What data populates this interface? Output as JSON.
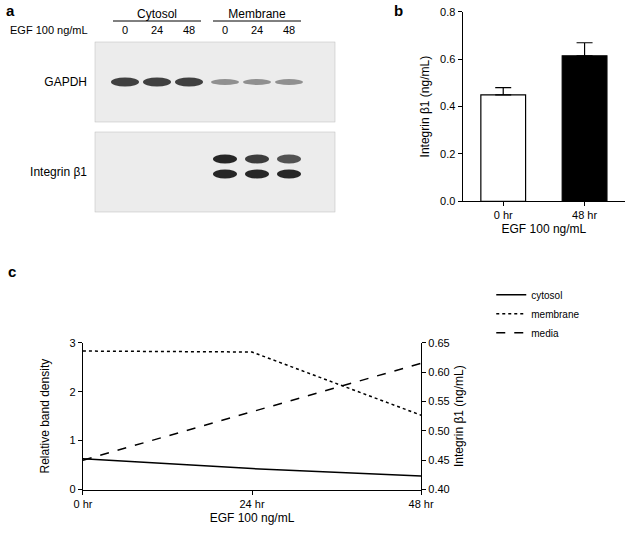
{
  "blot": {
    "panel_label": "a",
    "conditions_label": "EGF 100 ng/mL",
    "fractions": [
      {
        "name": "Cytosol",
        "lanes": [
          "0",
          "24",
          "48"
        ]
      },
      {
        "name": "Membrane",
        "lanes": [
          "0",
          "24",
          "48"
        ]
      }
    ],
    "rows": [
      "GAPDH",
      "Integrin β1"
    ]
  },
  "chart_data": [
    {
      "panel_label": "b",
      "type": "bar",
      "categories": [
        "0 hr",
        "48 hr"
      ],
      "values": [
        0.45,
        0.615
      ],
      "errors": [
        0.03,
        0.055
      ],
      "colors": [
        "#ffffff",
        "#000000"
      ],
      "x_label": "EGF 100 ng/mL",
      "y_label": "Integrin β1 (ng/mL)",
      "ylim": [
        0,
        0.8
      ],
      "yticks": [
        {
          "value": 0,
          "label": "0.0"
        },
        {
          "value": 0.2,
          "label": "0.2"
        },
        {
          "value": 0.4,
          "label": "0.4"
        },
        {
          "value": 0.6,
          "label": "0.6"
        },
        {
          "value": 0.8,
          "label": "0.8"
        }
      ],
      "grid": false
    },
    {
      "panel_label": "c",
      "type": "line",
      "categories": [
        "0 hr",
        "24 hr",
        "48 hr"
      ],
      "x_label": "EGF 100 ng/mL",
      "y_label": "Relative band density",
      "y2_label": "Integrin β1 (ng/mL)",
      "ylim": [
        0,
        3
      ],
      "yticks": [
        0,
        1,
        2,
        3
      ],
      "y2lim": [
        0.4,
        0.65
      ],
      "y2ticks": [
        {
          "value": 0.4,
          "label": "0.40"
        },
        {
          "value": 0.45,
          "label": "0.45"
        },
        {
          "value": 0.5,
          "label": "0.50"
        },
        {
          "value": 0.55,
          "label": "0.55"
        },
        {
          "value": 0.6,
          "label": "0.60"
        },
        {
          "value": 0.65,
          "label": "0.65"
        }
      ],
      "grid": false,
      "legend": "upper right",
      "series": [
        {
          "name": "cytosol",
          "color": "#000000",
          "line_style": "solid",
          "values": [
            0.63,
            0.43,
            0.28
          ]
        },
        {
          "name": "membrane",
          "color": "#000000",
          "line_style": "dotted",
          "values": [
            2.83,
            2.81,
            1.52
          ]
        },
        {
          "name": "media",
          "color": "#000000",
          "line_style": "dashed",
          "axis": "y2",
          "values": [
            0.45,
            0.533,
            0.615
          ]
        }
      ]
    }
  ]
}
